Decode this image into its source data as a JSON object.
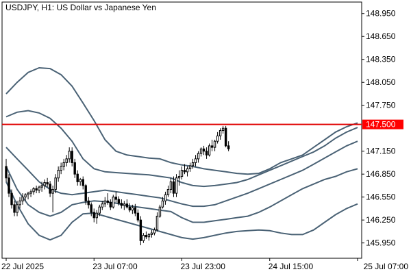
{
  "chart_header": {
    "title": "USDJPY, H1:  US Dollar vs Japanese Yen"
  },
  "chart_data": {
    "type": "candlestick",
    "symbol": "USDJPY",
    "timeframe": "H1",
    "description": "US Dollar vs Japanese Yen",
    "ylim": [
      145.75,
      149.1
    ],
    "y_ticks": [
      {
        "value": 148.95,
        "label": "148.950"
      },
      {
        "value": 148.65,
        "label": "148.650"
      },
      {
        "value": 148.35,
        "label": "148.350"
      },
      {
        "value": 148.05,
        "label": "148.050"
      },
      {
        "value": 147.75,
        "label": "147.750"
      },
      {
        "value": 147.45,
        "label": "147.450"
      },
      {
        "value": 147.15,
        "label": "147.150"
      },
      {
        "value": 146.85,
        "label": "146.850"
      },
      {
        "value": 146.55,
        "label": "146.550"
      },
      {
        "value": 146.25,
        "label": "146.250"
      },
      {
        "value": 145.95,
        "label": "145.950"
      }
    ],
    "x_ticks": [
      {
        "index": 0,
        "label": "22 Jul 2025"
      },
      {
        "index": 32,
        "label": "23 Jul 07:00"
      },
      {
        "index": 64,
        "label": "23 Jul 23:00"
      },
      {
        "index": 96,
        "label": "24 Jul 15:00"
      },
      {
        "index": 128,
        "label": "25 Jul 07:00"
      }
    ],
    "horizontal_level": {
      "value": 147.5,
      "label": "147.500",
      "color": "#ff0000"
    },
    "colors": {
      "background": "#ffffff",
      "axis": "#000000",
      "band": "#4a6275",
      "candle": "#000000",
      "bull_fill": "#ffffff",
      "bear_fill": "#000000",
      "level_line": "#e00000"
    },
    "candles": [
      [
        146.95,
        147.05,
        146.75,
        146.8
      ],
      [
        146.8,
        146.85,
        146.55,
        146.6
      ],
      [
        146.6,
        146.65,
        146.4,
        146.45
      ],
      [
        146.45,
        146.5,
        146.3,
        146.35
      ],
      [
        146.35,
        146.5,
        146.3,
        146.45
      ],
      [
        146.45,
        146.55,
        146.4,
        146.5
      ],
      [
        146.5,
        146.6,
        146.45,
        146.55
      ],
      [
        146.55,
        146.6,
        146.5,
        146.58
      ],
      [
        146.58,
        146.62,
        146.52,
        146.6
      ],
      [
        146.6,
        146.65,
        146.55,
        146.62
      ],
      [
        146.62,
        146.68,
        146.58,
        146.66
      ],
      [
        146.66,
        146.7,
        146.6,
        146.64
      ],
      [
        146.64,
        146.7,
        146.6,
        146.68
      ],
      [
        146.68,
        146.75,
        146.62,
        146.7
      ],
      [
        146.7,
        146.78,
        146.65,
        146.74
      ],
      [
        146.74,
        146.8,
        146.68,
        146.72
      ],
      [
        146.72,
        146.76,
        146.55,
        146.6
      ],
      [
        146.6,
        146.7,
        146.35,
        146.65
      ],
      [
        146.65,
        146.85,
        146.6,
        146.8
      ],
      [
        146.8,
        146.95,
        146.75,
        146.9
      ],
      [
        146.9,
        147.0,
        146.85,
        146.95
      ],
      [
        146.95,
        147.05,
        146.9,
        147.0
      ],
      [
        147.0,
        147.1,
        146.95,
        147.05
      ],
      [
        147.05,
        147.2,
        147.0,
        147.15
      ],
      [
        147.15,
        147.2,
        146.95,
        147.0
      ],
      [
        147.0,
        147.05,
        146.8,
        146.85
      ],
      [
        146.85,
        146.9,
        146.7,
        146.75
      ],
      [
        146.75,
        146.8,
        146.7,
        146.78
      ],
      [
        146.78,
        146.82,
        146.65,
        146.7
      ],
      [
        146.7,
        146.72,
        146.45,
        146.5
      ],
      [
        146.5,
        146.55,
        146.4,
        146.45
      ],
      [
        146.45,
        146.48,
        146.3,
        146.35
      ],
      [
        146.35,
        146.4,
        146.22,
        146.28
      ],
      [
        146.28,
        146.38,
        146.2,
        146.34
      ],
      [
        146.34,
        146.45,
        146.3,
        146.42
      ],
      [
        146.42,
        146.5,
        146.38,
        146.46
      ],
      [
        146.46,
        146.55,
        146.42,
        146.5
      ],
      [
        146.5,
        146.6,
        146.45,
        146.48
      ],
      [
        146.48,
        146.52,
        146.38,
        146.42
      ],
      [
        146.42,
        146.58,
        146.4,
        146.55
      ],
      [
        146.55,
        146.62,
        146.48,
        146.52
      ],
      [
        146.52,
        146.56,
        146.44,
        146.47
      ],
      [
        146.47,
        146.52,
        146.4,
        146.44
      ],
      [
        146.44,
        146.5,
        146.38,
        146.46
      ],
      [
        146.46,
        146.52,
        146.4,
        146.42
      ],
      [
        146.42,
        146.47,
        146.35,
        146.38
      ],
      [
        146.38,
        146.45,
        146.33,
        146.41
      ],
      [
        146.41,
        146.46,
        146.3,
        146.34
      ],
      [
        146.34,
        146.39,
        146.22,
        146.25
      ],
      [
        146.25,
        146.3,
        145.92,
        145.98
      ],
      [
        145.98,
        146.08,
        145.95,
        146.05
      ],
      [
        146.05,
        146.1,
        146.0,
        146.03
      ],
      [
        146.03,
        146.08,
        145.98,
        146.06
      ],
      [
        146.06,
        146.12,
        146.02,
        146.08
      ],
      [
        146.08,
        146.15,
        146.05,
        146.12
      ],
      [
        146.12,
        146.35,
        146.1,
        146.3
      ],
      [
        146.3,
        146.45,
        146.28,
        146.42
      ],
      [
        146.42,
        146.55,
        146.4,
        146.5
      ],
      [
        146.5,
        146.62,
        146.45,
        146.58
      ],
      [
        146.58,
        146.7,
        146.55,
        146.65
      ],
      [
        146.65,
        146.8,
        146.6,
        146.75
      ],
      [
        146.75,
        146.82,
        146.55,
        146.6
      ],
      [
        146.6,
        146.85,
        146.55,
        146.8
      ],
      [
        146.8,
        146.9,
        146.7,
        146.82
      ],
      [
        146.82,
        146.95,
        146.78,
        146.9
      ],
      [
        146.9,
        146.98,
        146.85,
        146.88
      ],
      [
        146.88,
        146.95,
        146.82,
        146.92
      ],
      [
        146.92,
        147.0,
        146.88,
        146.96
      ],
      [
        146.96,
        147.05,
        146.92,
        147.0
      ],
      [
        147.0,
        147.1,
        146.95,
        147.05
      ],
      [
        147.05,
        147.15,
        147.0,
        147.12
      ],
      [
        147.12,
        147.2,
        147.08,
        147.18
      ],
      [
        147.18,
        147.22,
        147.1,
        147.15
      ],
      [
        147.15,
        147.2,
        147.05,
        147.1
      ],
      [
        147.1,
        147.25,
        147.08,
        147.22
      ],
      [
        147.22,
        147.3,
        147.15,
        147.2
      ],
      [
        147.2,
        147.3,
        147.15,
        147.28
      ],
      [
        147.28,
        147.4,
        147.25,
        147.35
      ],
      [
        147.35,
        147.45,
        147.3,
        147.42
      ],
      [
        147.42,
        147.48,
        147.38,
        147.45
      ],
      [
        147.45,
        147.48,
        147.2,
        147.22
      ],
      [
        147.22,
        147.28,
        147.15,
        147.18
      ]
    ],
    "bands": {
      "upper_outer": [
        147.9,
        148.05,
        148.18,
        148.24,
        148.23,
        148.15,
        148.0,
        147.78,
        147.55,
        147.3,
        147.15,
        147.1,
        147.08,
        147.06,
        147.05,
        147.0,
        146.97,
        146.95,
        146.92,
        146.9,
        146.88,
        146.86,
        146.85,
        146.86,
        146.92,
        147.0,
        147.05,
        147.1,
        147.2,
        147.3,
        147.4,
        147.47,
        147.52
      ],
      "upper_inner": [
        147.6,
        147.66,
        147.68,
        147.65,
        147.58,
        147.45,
        147.28,
        147.05,
        146.92,
        146.88,
        146.87,
        146.86,
        146.85,
        146.84,
        146.82,
        146.8,
        146.74,
        146.7,
        146.69,
        146.7,
        146.72,
        146.74,
        146.78,
        146.84,
        146.9,
        146.96,
        147.02,
        147.08,
        147.14,
        147.22,
        147.32,
        147.4,
        147.46
      ],
      "middle": [
        147.2,
        147.05,
        146.9,
        146.75,
        146.65,
        146.6,
        146.58,
        146.6,
        146.62,
        146.64,
        146.62,
        146.6,
        146.58,
        146.56,
        146.54,
        146.5,
        146.46,
        146.43,
        146.43,
        146.45,
        146.5,
        146.55,
        146.6,
        146.66,
        146.72,
        146.78,
        146.84,
        146.9,
        146.98,
        147.06,
        147.14,
        147.22,
        147.28
      ],
      "lower_inner": [
        146.95,
        146.65,
        146.45,
        146.35,
        146.3,
        146.35,
        146.45,
        146.48,
        146.5,
        146.49,
        146.47,
        146.44,
        146.42,
        146.4,
        146.38,
        146.36,
        146.28,
        146.22,
        146.22,
        146.24,
        146.26,
        146.28,
        146.3,
        146.35,
        146.42,
        146.5,
        146.58,
        146.66,
        146.72,
        146.78,
        146.82,
        146.88,
        146.92
      ],
      "lower_outer": [
        146.75,
        146.45,
        146.2,
        146.05,
        145.99,
        146.05,
        146.22,
        146.33,
        146.34,
        146.3,
        146.26,
        146.22,
        146.18,
        146.14,
        146.1,
        146.06,
        146.02,
        146.0,
        146.02,
        146.05,
        146.08,
        146.1,
        146.11,
        146.12,
        146.11,
        146.08,
        146.06,
        146.06,
        146.12,
        146.22,
        146.32,
        146.4,
        146.46
      ]
    }
  }
}
